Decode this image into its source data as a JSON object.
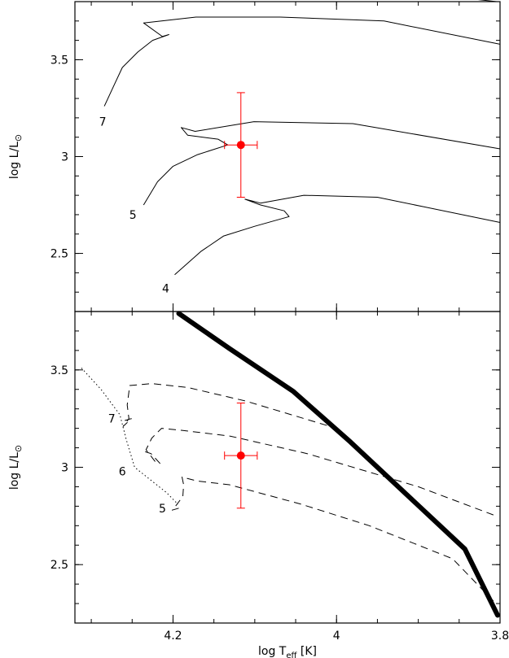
{
  "chart_data": [
    {
      "type": "line",
      "panel": "top",
      "xlim": [
        4.32,
        3.8
      ],
      "ylim": [
        2.2,
        3.8
      ],
      "x_reversed": true,
      "xlabel": "",
      "ylabel": "log L/L⊙",
      "y_ticks": [
        {
          "value": 2.5,
          "label": "2.5"
        },
        {
          "value": 3.0,
          "label": "3"
        },
        {
          "value": 3.5,
          "label": "3.5"
        }
      ],
      "x_ticks": [
        4.2,
        4.0,
        3.8
      ],
      "series": [
        {
          "label": "7",
          "label_at": [
            4.286,
            3.18
          ],
          "style": "solid",
          "color": "#000000",
          "points": [
            [
              4.284,
              3.26
            ],
            [
              4.272,
              3.37
            ],
            [
              4.262,
              3.46
            ],
            [
              4.243,
              3.54
            ],
            [
              4.225,
              3.6
            ],
            [
              4.205,
              3.63
            ],
            [
              4.213,
              3.62
            ],
            [
              4.236,
              3.69
            ],
            [
              4.172,
              3.72
            ],
            [
              4.069,
              3.72
            ],
            [
              3.942,
              3.7
            ],
            [
              3.8,
              3.58
            ]
          ]
        },
        {
          "label": "",
          "label_at": null,
          "style": "solid",
          "color": "#000000",
          "points": [
            [
              3.804,
              3.8
            ],
            [
              3.826,
              3.81
            ],
            [
              3.848,
              3.82
            ]
          ]
        },
        {
          "label": "5",
          "label_at": [
            4.249,
            2.7
          ],
          "style": "solid",
          "color": "#000000",
          "points": [
            [
              4.236,
              2.75
            ],
            [
              4.219,
              2.87
            ],
            [
              4.2,
              2.95
            ],
            [
              4.17,
              3.01
            ],
            [
              4.133,
              3.06
            ],
            [
              4.145,
              3.09
            ],
            [
              4.182,
              3.11
            ],
            [
              4.19,
              3.15
            ],
            [
              4.173,
              3.13
            ],
            [
              4.101,
              3.18
            ],
            [
              3.98,
              3.17
            ],
            [
              3.8,
              3.04
            ]
          ]
        },
        {
          "label": "4",
          "label_at": [
            4.209,
            2.32
          ],
          "style": "solid",
          "color": "#000000",
          "points": [
            [
              4.198,
              2.39
            ],
            [
              4.166,
              2.51
            ],
            [
              4.138,
              2.59
            ],
            [
              4.1,
              2.64
            ],
            [
              4.058,
              2.69
            ],
            [
              4.064,
              2.72
            ],
            [
              4.093,
              2.75
            ],
            [
              4.112,
              2.78
            ],
            [
              4.093,
              2.76
            ],
            [
              4.04,
              2.8
            ],
            [
              3.95,
              2.79
            ],
            [
              3.8,
              2.66
            ]
          ]
        }
      ],
      "error_point": {
        "x": 4.117,
        "y": 3.06,
        "xerr": 0.02,
        "yerr_up": 0.27,
        "yerr_down": 0.27,
        "color": "#ff0000"
      }
    },
    {
      "type": "line",
      "panel": "bottom",
      "xlim": [
        4.32,
        3.8
      ],
      "ylim": [
        2.2,
        3.8
      ],
      "x_reversed": true,
      "xlabel": "log T_eff [K]",
      "xlabel_main": "log T",
      "xlabel_sub": "eff",
      "xlabel_unit": " [K]",
      "ylabel": "log L/L⊙",
      "y_ticks": [
        {
          "value": 2.5,
          "label": "2.5"
        },
        {
          "value": 3.0,
          "label": "3"
        },
        {
          "value": 3.5,
          "label": "3.5"
        }
      ],
      "x_ticks": [
        {
          "value": 4.2,
          "label": "4.2"
        },
        {
          "value": 4.0,
          "label": "4"
        },
        {
          "value": 3.8,
          "label": "3.8"
        }
      ],
      "series": [
        {
          "label": "7",
          "label_at": [
            4.275,
            3.25
          ],
          "style": "dashed",
          "color": "#000000",
          "points": [
            [
              4.259,
              3.24
            ],
            [
              4.251,
              3.25
            ],
            [
              4.261,
              3.21
            ],
            [
              4.254,
              3.25
            ],
            [
              4.256,
              3.32
            ],
            [
              4.253,
              3.42
            ],
            [
              4.226,
              3.43
            ],
            [
              4.182,
              3.41
            ],
            [
              4.111,
              3.34
            ],
            [
              4.0,
              3.2
            ],
            [
              3.953,
              3.01
            ]
          ]
        },
        {
          "label": "6",
          "label_at": [
            4.262,
            2.98
          ],
          "style": "dashed",
          "color": "#000000",
          "points": [
            [
              4.234,
              3.08
            ],
            [
              4.227,
              3.07
            ],
            [
              4.216,
              3.02
            ],
            [
              4.222,
              3.03
            ],
            [
              4.233,
              3.09
            ],
            [
              4.226,
              3.15
            ],
            [
              4.214,
              3.2
            ],
            [
              4.19,
              3.19
            ],
            [
              4.13,
              3.16
            ],
            [
              4.036,
              3.07
            ],
            [
              3.9,
              2.9
            ],
            [
              3.805,
              2.75
            ]
          ]
        },
        {
          "label": "5",
          "label_at": [
            4.213,
            2.79
          ],
          "style": "dashed",
          "color": "#000000",
          "points": [
            [
              4.193,
              2.79
            ],
            [
              4.201,
              2.78
            ],
            [
              4.197,
              2.8
            ],
            [
              4.188,
              2.85
            ],
            [
              4.187,
              2.91
            ],
            [
              4.189,
              2.95
            ],
            [
              4.171,
              2.93
            ],
            [
              4.131,
              2.91
            ],
            [
              4.043,
              2.81
            ],
            [
              3.96,
              2.7
            ],
            [
              3.858,
              2.53
            ],
            [
              3.805,
              2.3
            ]
          ]
        },
        {
          "label": "",
          "label_at": null,
          "style": "dotted",
          "color": "#000000",
          "points": [
            [
              4.312,
              3.51
            ],
            [
              4.288,
              3.4
            ],
            [
              4.265,
              3.27
            ],
            [
              4.257,
              3.14
            ],
            [
              4.247,
              3.0
            ],
            [
              4.226,
              2.93
            ],
            [
              4.208,
              2.87
            ],
            [
              4.194,
              2.81
            ]
          ]
        },
        {
          "label": "",
          "label_at": null,
          "style": "solid-thick",
          "color": "#000000",
          "points": [
            [
              4.193,
              3.79
            ],
            [
              4.131,
              3.61
            ],
            [
              4.053,
              3.39
            ],
            [
              3.983,
              3.13
            ],
            [
              3.843,
              2.58
            ],
            [
              3.803,
              2.24
            ]
          ]
        }
      ],
      "error_point": {
        "x": 4.117,
        "y": 3.06,
        "xerr": 0.02,
        "yerr_up": 0.27,
        "yerr_down": 0.27,
        "color": "#ff0000"
      }
    }
  ]
}
